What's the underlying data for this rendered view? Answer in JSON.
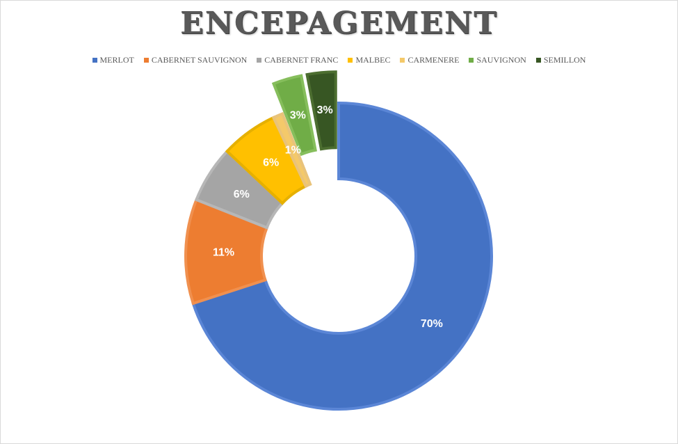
{
  "chart_data": {
    "type": "pie",
    "variant": "doughnut",
    "title": "ENCEPAGEMENT",
    "legend_position": "top",
    "categories": [
      "MERLOT",
      "CABERNET SAUVIGNON",
      "CABERNET FRANC",
      "MALBEC",
      "CARMENERE",
      "SAUVIGNON",
      "SEMILLON"
    ],
    "values": [
      70,
      11,
      6,
      6,
      1,
      3,
      3
    ],
    "labels": [
      "70%",
      "11%",
      "6%",
      "6%",
      "1%",
      "3%",
      "3%"
    ],
    "exploded": [
      false,
      false,
      false,
      false,
      false,
      true,
      true
    ],
    "colors": [
      "#4472C4",
      "#ED7D31",
      "#A5A5A5",
      "#FFC000",
      "#F4C96A",
      "#70AD47",
      "#375623"
    ],
    "border_colors": [
      "#5B86D6",
      "#F0904F",
      "#B7B7B7",
      "#E6B000",
      "#E9C37A",
      "#86BE5C",
      "#4C6E30"
    ]
  }
}
